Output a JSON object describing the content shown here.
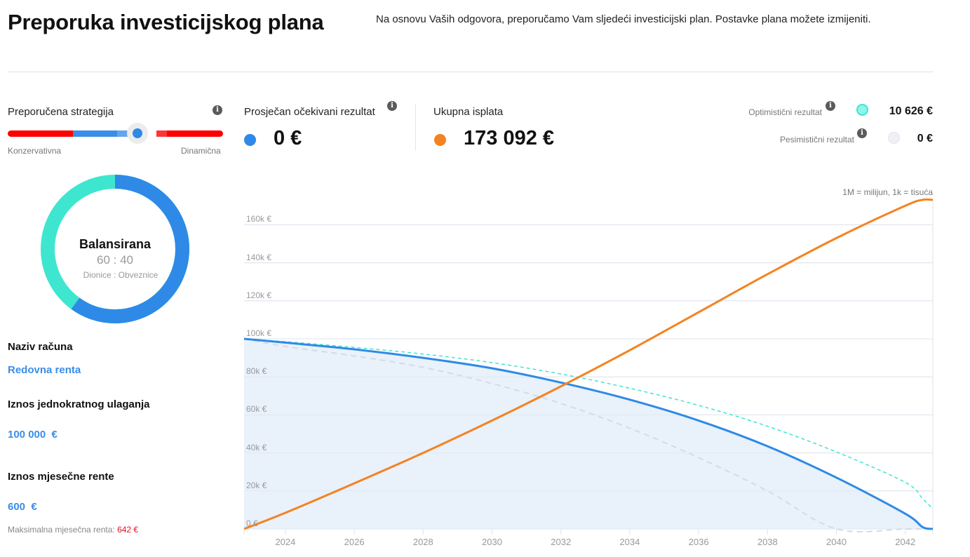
{
  "header": {
    "title": "Preporuka investicijskog plana",
    "description": "Na osnovu Vaših odgovora, preporučamo Vam sljedeći investicijski plan. Postavke plana možete izmijeniti."
  },
  "strategy": {
    "label": "Preporučena strategija",
    "info_icon": "info-icon",
    "slider_min_label": "Konzervativna",
    "slider_max_label": "Dinamična",
    "slider_position_percent": 60,
    "donut": {
      "title": "Balansirana",
      "ratio": "60 : 40",
      "caption": "Dionice : Obveznice",
      "segments": [
        {
          "name": "Dionice",
          "percent": 60,
          "color": "#2e8ae6"
        },
        {
          "name": "Obveznice",
          "percent": 40,
          "color": "#3ee6cf"
        }
      ]
    }
  },
  "account": {
    "name_label": "Naziv računa",
    "name_value": "Redovna renta",
    "lump_sum_label": "Iznos jednokratnog ulaganja",
    "lump_sum_value": "100 000  €",
    "monthly_rent_label": "Iznos mjesečne rente",
    "monthly_rent_value": "600  €",
    "max_rent_label": "Maksimalna mjesečna renta:",
    "max_rent_value": "642 €"
  },
  "metrics": {
    "expected": {
      "label": "Prosječan očekivani rezultat",
      "value": "0 €",
      "color": "#2e8ae6"
    },
    "total_payout": {
      "label": "Ukupna isplata",
      "value": "173 092 €",
      "color": "#f58220"
    },
    "optimistic": {
      "label": "Optimistični rezultat",
      "value": "10 626 €",
      "color": "#8ef5ea"
    },
    "pessimistic": {
      "label": "Pesimistični rezultat",
      "value": "0 €",
      "color": "#eef0f5"
    }
  },
  "chart_note": "1M = milijun, 1k = tisuća",
  "chart_data": {
    "type": "line",
    "title": "",
    "xlabel": "",
    "ylabel": "",
    "x_ticks": [
      "2024",
      "2026",
      "2028",
      "2030",
      "2032",
      "2034",
      "2036",
      "2038",
      "2040",
      "2042"
    ],
    "y_ticks": [
      "0 €",
      "20k €",
      "40k €",
      "60k €",
      "80k €",
      "100k €",
      "120k €",
      "140k €",
      "160k €"
    ],
    "ylim": [
      0,
      170000
    ],
    "xlim": [
      2022.8,
      2042.8
    ],
    "grid": true,
    "x": [
      2022.8,
      2024,
      2026,
      2028,
      2030,
      2032,
      2034,
      2036,
      2038,
      2040,
      2042,
      2042.5,
      2042.8
    ],
    "series": [
      {
        "name": "Prosječan očekivani rezultat",
        "color": "#2e8ae6",
        "style": "solid-area",
        "values": [
          100000,
          98000,
          94500,
          90000,
          84500,
          77000,
          68000,
          57000,
          43500,
          27000,
          8000,
          1000,
          0
        ]
      },
      {
        "name": "Optimistični rezultat",
        "color": "#3ee6cf",
        "style": "dashed",
        "values": [
          100000,
          98500,
          95500,
          92000,
          87500,
          81500,
          74000,
          65000,
          54000,
          40500,
          24500,
          16000,
          10626
        ]
      },
      {
        "name": "Pesimistični rezultat",
        "color": "#d5dbe3",
        "style": "dashed",
        "values": [
          100000,
          96000,
          91000,
          85000,
          76500,
          66000,
          53000,
          37500,
          20000,
          0,
          0,
          0,
          0
        ]
      },
      {
        "name": "Ukupna isplata",
        "color": "#f58220",
        "style": "solid",
        "values": [
          0,
          8500,
          24000,
          40000,
          57000,
          75000,
          94000,
          114000,
          134000,
          153000,
          170000,
          173092,
          173092
        ]
      }
    ]
  }
}
